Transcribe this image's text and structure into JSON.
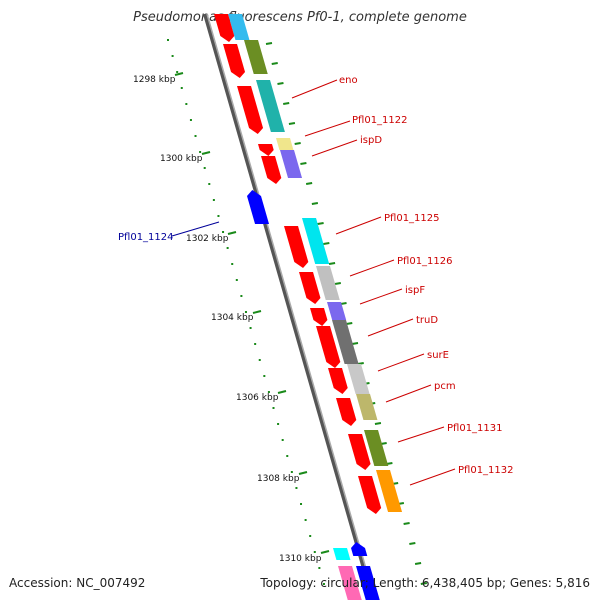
{
  "title": "Pseudomonas fluorescens Pf0-1, complete genome",
  "accession": "Accession: NC_007492",
  "summary": "Topology: circular; Length: 6,438,405 bp; Genes: 5,816",
  "colors": {
    "backbone": "#777777",
    "ruler_dots": "#1a8a1a",
    "forward_gene": "#ff0000",
    "reverse_gene": "#0000ff",
    "label_forward": "#cc0000",
    "label_reverse": "#000099"
  },
  "ruler": [
    "1298 kbp",
    "1300 kbp",
    "1302 kbp",
    "1304 kbp",
    "1306 kbp",
    "1308 kbp",
    "1310 kbp"
  ],
  "labels": [
    {
      "text": "eno",
      "strand": "forward"
    },
    {
      "text": "Pfl01_1122",
      "strand": "forward"
    },
    {
      "text": "ispD",
      "strand": "forward"
    },
    {
      "text": "Pfl01_1124",
      "strand": "reverse"
    },
    {
      "text": "Pfl01_1125",
      "strand": "forward"
    },
    {
      "text": "Pfl01_1126",
      "strand": "forward"
    },
    {
      "text": "ispF",
      "strand": "forward"
    },
    {
      "text": "truD",
      "strand": "forward"
    },
    {
      "text": "surE",
      "strand": "forward"
    },
    {
      "text": "pcm",
      "strand": "forward"
    },
    {
      "text": "Pfl01_1131",
      "strand": "forward"
    },
    {
      "text": "Pfl01_1132",
      "strand": "forward"
    }
  ]
}
